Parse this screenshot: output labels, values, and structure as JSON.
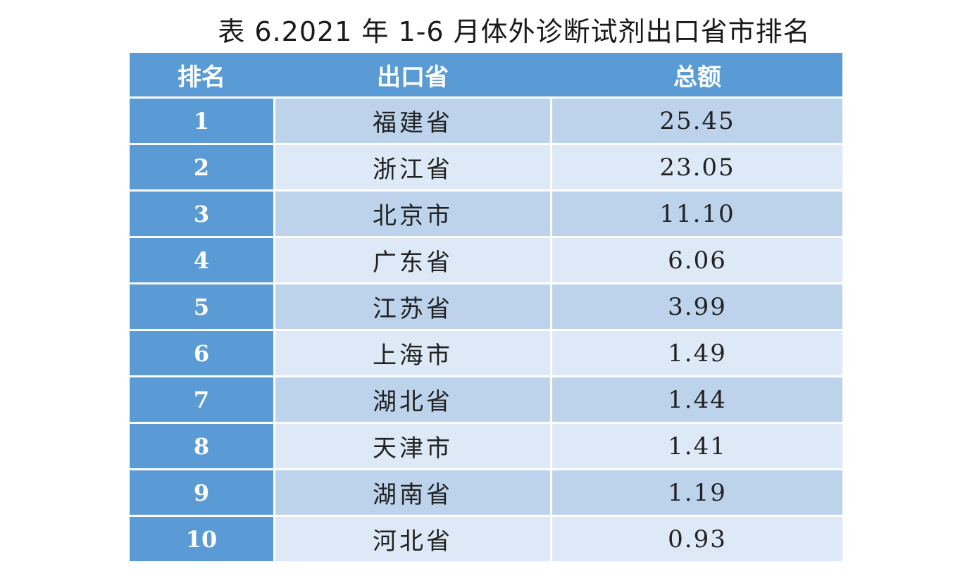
{
  "title": "表 6.2021 年 1-6 月体外诊断试剂出口省市排名",
  "table": {
    "headers": [
      "排名",
      "出口省",
      "总额"
    ],
    "rows": [
      {
        "rank": "1",
        "province": "福建省",
        "amount": "25.45"
      },
      {
        "rank": "2",
        "province": "浙江省",
        "amount": "23.05"
      },
      {
        "rank": "3",
        "province": "北京市",
        "amount": "11.10"
      },
      {
        "rank": "4",
        "province": "广东省",
        "amount": "6.06"
      },
      {
        "rank": "5",
        "province": "江苏省",
        "amount": "3.99"
      },
      {
        "rank": "6",
        "province": "上海市",
        "amount": "1.49"
      },
      {
        "rank": "7",
        "province": "湖北省",
        "amount": "1.44"
      },
      {
        "rank": "8",
        "province": "天津市",
        "amount": "1.41"
      },
      {
        "rank": "9",
        "province": "湖南省",
        "amount": "1.19"
      },
      {
        "rank": "10",
        "province": "河北省",
        "amount": "0.93"
      }
    ]
  },
  "colors": {
    "header_bg": "#5b9bd5",
    "rank_bg": "#5b9bd5",
    "row_odd_bg": "#bdd3ec",
    "row_even_bg": "#dde9f6"
  }
}
